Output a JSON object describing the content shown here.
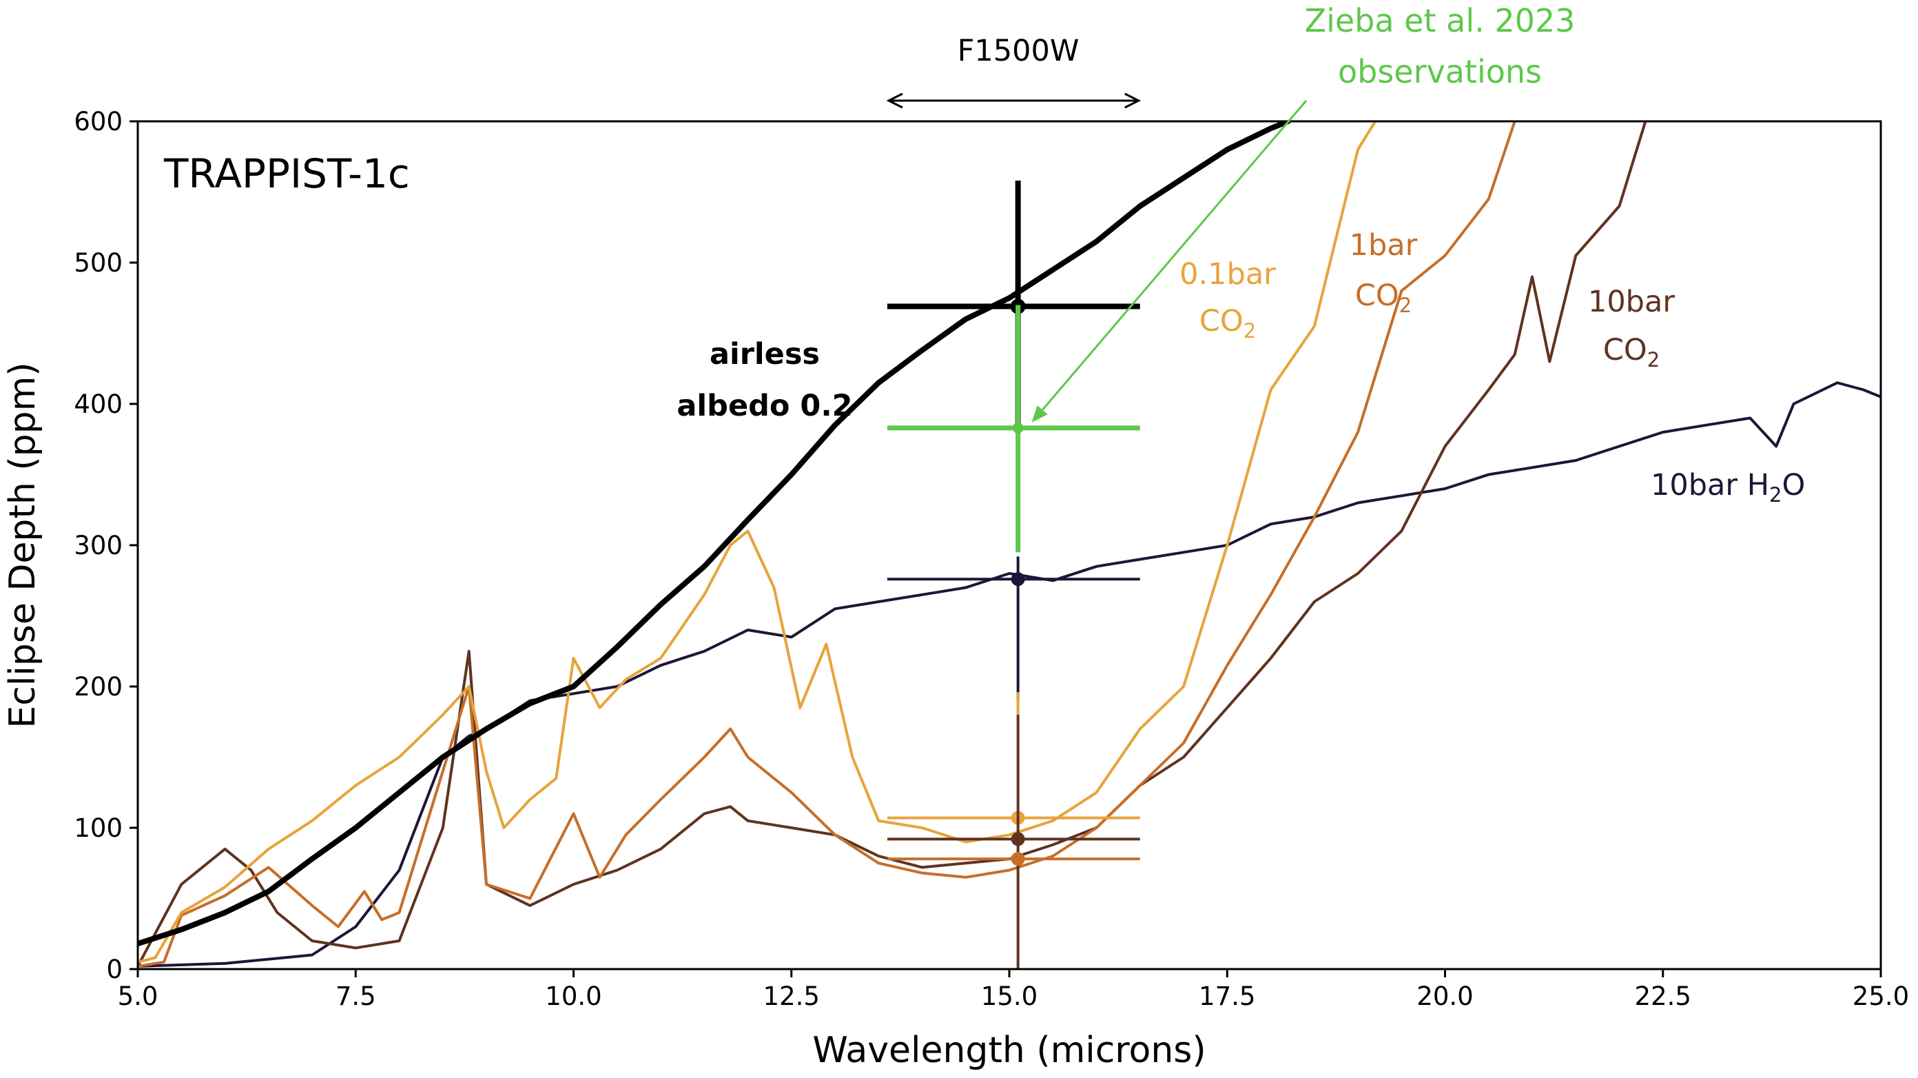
{
  "chart_data": {
    "type": "line",
    "title": "TRAPPIST-1c",
    "xlabel": "Wavelength (microns)",
    "ylabel": "Eclipse Depth (ppm)",
    "xlim": [
      5.0,
      25.0
    ],
    "ylim": [
      0,
      600
    ],
    "x_ticks": [
      "5.0",
      "7.5",
      "10.0",
      "12.5",
      "15.0",
      "17.5",
      "20.0",
      "22.5",
      "25.0"
    ],
    "y_ticks": [
      "0",
      "100",
      "200",
      "300",
      "400",
      "500",
      "600"
    ],
    "grid": false,
    "filter": {
      "label": "F1500W",
      "range": [
        13.6,
        16.5
      ]
    },
    "colors": {
      "airless": "#000000",
      "co2_01bar": "#e8a33c",
      "co2_1bar": "#c66e28",
      "co2_10bar": "#5e3320",
      "h2o_10bar": "#1f1538",
      "observation": "#5dc84a"
    },
    "series": [
      {
        "name": "airless albedo 0.2",
        "key": "airless",
        "width": 8,
        "points": [
          [
            5.0,
            18
          ],
          [
            5.5,
            28
          ],
          [
            6.0,
            40
          ],
          [
            6.5,
            55
          ],
          [
            7.0,
            78
          ],
          [
            7.5,
            100
          ],
          [
            8.0,
            125
          ],
          [
            8.5,
            150
          ],
          [
            9.0,
            170
          ],
          [
            9.5,
            188
          ],
          [
            10.0,
            200
          ],
          [
            10.5,
            228
          ],
          [
            11.0,
            258
          ],
          [
            11.5,
            285
          ],
          [
            12.0,
            318
          ],
          [
            12.5,
            350
          ],
          [
            13.0,
            385
          ],
          [
            13.5,
            415
          ],
          [
            14.0,
            438
          ],
          [
            14.5,
            460
          ],
          [
            15.0,
            475
          ],
          [
            15.5,
            495
          ],
          [
            16.0,
            515
          ],
          [
            16.5,
            540
          ],
          [
            17.0,
            560
          ],
          [
            17.5,
            580
          ],
          [
            18.0,
            595
          ],
          [
            18.2,
            600
          ]
        ]
      },
      {
        "name": "0.1bar CO2",
        "key": "co2_01bar",
        "width": 4,
        "points": [
          [
            5.0,
            5
          ],
          [
            5.2,
            8
          ],
          [
            5.5,
            40
          ],
          [
            6.0,
            58
          ],
          [
            6.5,
            85
          ],
          [
            7.0,
            105
          ],
          [
            7.5,
            130
          ],
          [
            8.0,
            150
          ],
          [
            8.5,
            180
          ],
          [
            8.8,
            200
          ],
          [
            9.0,
            140
          ],
          [
            9.2,
            100
          ],
          [
            9.5,
            120
          ],
          [
            9.8,
            135
          ],
          [
            10.0,
            220
          ],
          [
            10.3,
            185
          ],
          [
            10.6,
            205
          ],
          [
            11.0,
            220
          ],
          [
            11.5,
            265
          ],
          [
            11.8,
            300
          ],
          [
            12.0,
            310
          ],
          [
            12.3,
            270
          ],
          [
            12.6,
            185
          ],
          [
            12.9,
            230
          ],
          [
            13.2,
            150
          ],
          [
            13.5,
            105
          ],
          [
            14.0,
            100
          ],
          [
            14.5,
            90
          ],
          [
            15.0,
            95
          ],
          [
            15.5,
            105
          ],
          [
            16.0,
            125
          ],
          [
            16.5,
            170
          ],
          [
            17.0,
            200
          ],
          [
            17.5,
            300
          ],
          [
            18.0,
            410
          ],
          [
            18.5,
            455
          ],
          [
            19.0,
            580
          ],
          [
            19.2,
            600
          ]
        ]
      },
      {
        "name": "1bar CO2",
        "key": "co2_1bar",
        "width": 4,
        "points": [
          [
            5.0,
            2
          ],
          [
            5.3,
            5
          ],
          [
            5.5,
            38
          ],
          [
            6.0,
            52
          ],
          [
            6.5,
            72
          ],
          [
            7.0,
            45
          ],
          [
            7.3,
            30
          ],
          [
            7.6,
            55
          ],
          [
            7.8,
            35
          ],
          [
            8.0,
            40
          ],
          [
            8.4,
            120
          ],
          [
            8.8,
            200
          ],
          [
            9.0,
            60
          ],
          [
            9.5,
            50
          ],
          [
            10.0,
            110
          ],
          [
            10.3,
            65
          ],
          [
            10.6,
            95
          ],
          [
            11.0,
            120
          ],
          [
            11.5,
            150
          ],
          [
            11.8,
            170
          ],
          [
            12.0,
            150
          ],
          [
            12.5,
            125
          ],
          [
            13.0,
            95
          ],
          [
            13.5,
            75
          ],
          [
            14.0,
            68
          ],
          [
            14.5,
            65
          ],
          [
            15.0,
            70
          ],
          [
            15.5,
            80
          ],
          [
            16.0,
            100
          ],
          [
            16.5,
            130
          ],
          [
            17.0,
            160
          ],
          [
            17.5,
            215
          ],
          [
            18.0,
            265
          ],
          [
            18.5,
            320
          ],
          [
            19.0,
            380
          ],
          [
            19.5,
            480
          ],
          [
            20.0,
            505
          ],
          [
            20.5,
            545
          ],
          [
            20.8,
            600
          ]
        ]
      },
      {
        "name": "10bar CO2",
        "key": "co2_10bar",
        "width": 4,
        "points": [
          [
            5.0,
            2
          ],
          [
            5.5,
            60
          ],
          [
            6.0,
            85
          ],
          [
            6.3,
            70
          ],
          [
            6.6,
            40
          ],
          [
            7.0,
            20
          ],
          [
            7.5,
            15
          ],
          [
            8.0,
            20
          ],
          [
            8.5,
            100
          ],
          [
            8.8,
            225
          ],
          [
            9.0,
            60
          ],
          [
            9.5,
            45
          ],
          [
            10.0,
            60
          ],
          [
            10.5,
            70
          ],
          [
            11.0,
            85
          ],
          [
            11.5,
            110
          ],
          [
            11.8,
            115
          ],
          [
            12.0,
            105
          ],
          [
            12.5,
            100
          ],
          [
            13.0,
            95
          ],
          [
            13.5,
            80
          ],
          [
            14.0,
            72
          ],
          [
            14.5,
            75
          ],
          [
            15.0,
            78
          ],
          [
            15.5,
            88
          ],
          [
            16.0,
            100
          ],
          [
            16.5,
            130
          ],
          [
            17.0,
            150
          ],
          [
            17.5,
            185
          ],
          [
            18.0,
            220
          ],
          [
            18.5,
            260
          ],
          [
            19.0,
            280
          ],
          [
            19.5,
            310
          ],
          [
            20.0,
            370
          ],
          [
            20.5,
            410
          ],
          [
            20.8,
            435
          ],
          [
            21.0,
            490
          ],
          [
            21.2,
            430
          ],
          [
            21.5,
            505
          ],
          [
            22.0,
            540
          ],
          [
            22.3,
            600
          ]
        ]
      },
      {
        "name": "10bar H2O",
        "key": "h2o_10bar",
        "width": 4,
        "points": [
          [
            5.0,
            2
          ],
          [
            6.0,
            4
          ],
          [
            7.0,
            10
          ],
          [
            7.5,
            30
          ],
          [
            8.0,
            70
          ],
          [
            8.5,
            150
          ],
          [
            8.8,
            165
          ],
          [
            9.0,
            170
          ],
          [
            9.5,
            190
          ],
          [
            10.0,
            195
          ],
          [
            10.5,
            200
          ],
          [
            11.0,
            215
          ],
          [
            11.5,
            225
          ],
          [
            12.0,
            240
          ],
          [
            12.5,
            235
          ],
          [
            13.0,
            255
          ],
          [
            13.5,
            260
          ],
          [
            14.0,
            265
          ],
          [
            14.5,
            270
          ],
          [
            15.0,
            280
          ],
          [
            15.5,
            275
          ],
          [
            16.0,
            285
          ],
          [
            16.5,
            290
          ],
          [
            17.0,
            295
          ],
          [
            17.5,
            300
          ],
          [
            18.0,
            315
          ],
          [
            18.5,
            320
          ],
          [
            19.0,
            330
          ],
          [
            19.5,
            335
          ],
          [
            20.0,
            340
          ],
          [
            20.5,
            350
          ],
          [
            21.0,
            355
          ],
          [
            21.5,
            360
          ],
          [
            22.0,
            370
          ],
          [
            22.5,
            380
          ],
          [
            23.0,
            385
          ],
          [
            23.5,
            390
          ],
          [
            23.8,
            370
          ],
          [
            24.0,
            400
          ],
          [
            24.5,
            415
          ],
          [
            24.8,
            410
          ],
          [
            25.0,
            405
          ]
        ]
      }
    ],
    "error_bars": [
      {
        "key": "airless",
        "x": 15.1,
        "y": 469,
        "xlo": 13.6,
        "xhi": 16.5,
        "ylo": 385,
        "yhi": 558,
        "width": 8,
        "r": 11
      },
      {
        "key": "observation",
        "x": 15.1,
        "y": 383,
        "xlo": 13.6,
        "xhi": 16.5,
        "ylo": 295,
        "yhi": 470,
        "width": 7,
        "r": 8
      },
      {
        "key": "h2o_10bar",
        "x": 15.1,
        "y": 276,
        "xlo": 13.6,
        "xhi": 16.5,
        "ylo": 190,
        "yhi": 292,
        "width": 4,
        "r": 10
      },
      {
        "key": "co2_01bar",
        "x": 15.1,
        "y": 107,
        "xlo": 13.6,
        "xhi": 16.5,
        "ylo": 180,
        "yhi": 196,
        "width": 4,
        "r": 10
      },
      {
        "key": "co2_10bar",
        "x": 15.1,
        "y": 92,
        "xlo": 13.6,
        "xhi": 16.5,
        "ylo": 0,
        "yhi": 180,
        "width": 4,
        "r": 10
      },
      {
        "key": "co2_1bar",
        "x": 15.1,
        "y": 78,
        "xlo": 13.6,
        "xhi": 16.5,
        "ylo": 0,
        "yhi": 0,
        "width": 4,
        "r": 10
      }
    ],
    "annotations": {
      "planet": "TRAPPIST-1c",
      "filter": "F1500W",
      "observation_line1": "Zieba et al. 2023",
      "observation_line2": "observations",
      "airless_line1": "airless",
      "airless_line2": "albedo 0.2",
      "co2_01_line1": "0.1bar",
      "co2_01_line2": "CO",
      "co2_1_line1": "1bar",
      "co2_1_line2": "CO",
      "co2_10_line1": "10bar",
      "co2_10_line2": "CO",
      "h2o_label": "10bar H",
      "h2o_suffix": "O",
      "subscript_2": "2"
    }
  }
}
